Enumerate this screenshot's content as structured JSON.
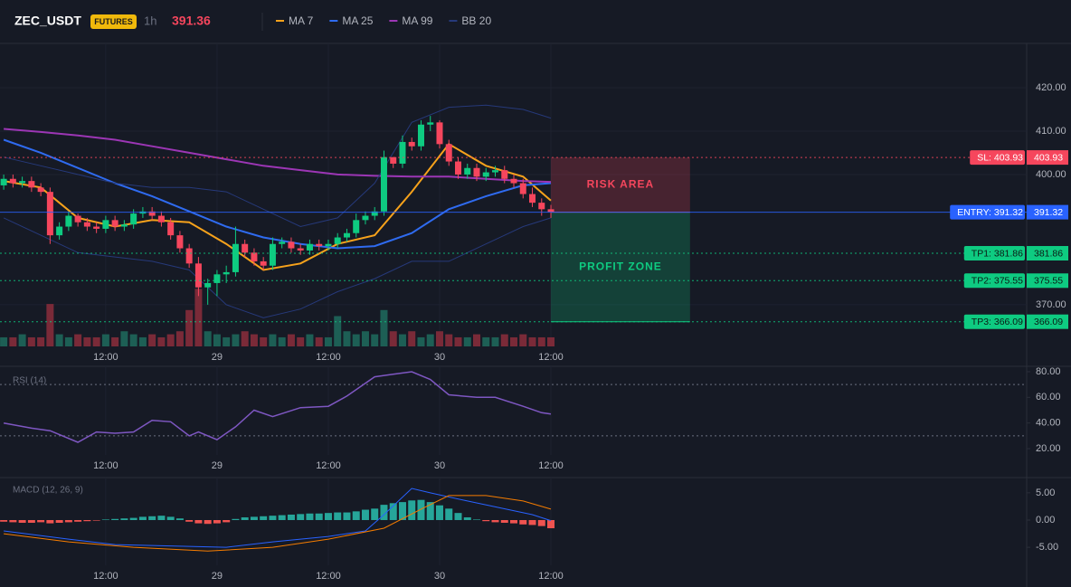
{
  "header": {
    "symbol": "ZEC_USDT",
    "badge": "FUTURES",
    "interval": "1h",
    "price": 391.36
  },
  "chart_data": [
    {
      "type": "candlestick",
      "xlim": [
        0.6,
        111.3
      ],
      "ylim": [
        360.4,
        430.2
      ],
      "y2lim": [
        0,
        100
      ],
      "grid": true,
      "xticks": [
        {
          "value": 12,
          "label": "12:00"
        },
        {
          "value": 24,
          "label": "29"
        },
        {
          "value": 36,
          "label": "12:00"
        },
        {
          "value": 48,
          "label": "30"
        },
        {
          "value": 60,
          "label": "12:00"
        }
      ],
      "yticks": [
        {
          "value": 420,
          "label": "420.00"
        },
        {
          "value": 410,
          "label": "410.00"
        },
        {
          "value": 400,
          "label": "400.00"
        },
        {
          "value": 370,
          "label": "370.00"
        }
      ],
      "colors": {
        "up": "#0ecb81",
        "down": "#f6465d",
        "volume_up": "#1d5f55",
        "volume_down": "#7a2a38"
      },
      "x": [
        1,
        2,
        3,
        4,
        5,
        6,
        7,
        8,
        9,
        10,
        11,
        12,
        13,
        14,
        15,
        16,
        17,
        18,
        19,
        20,
        21,
        22,
        23,
        24,
        25,
        26,
        27,
        28,
        29,
        30,
        31,
        32,
        33,
        34,
        35,
        36,
        37,
        38,
        39,
        40,
        41,
        42,
        43,
        44,
        45,
        46,
        47,
        48,
        49,
        50,
        51,
        52,
        53,
        54,
        55,
        56,
        57,
        58,
        59,
        60
      ],
      "open": [
        397.5,
        399,
        398,
        398.5,
        397,
        396,
        386,
        388,
        390.5,
        389,
        388,
        387.5,
        389.5,
        388,
        388.5,
        391,
        391.5,
        390.5,
        389,
        386,
        383,
        379.5,
        374,
        375,
        377,
        377.5,
        384,
        382,
        380,
        379,
        384,
        384.5,
        383,
        382.5,
        384,
        383.5,
        384,
        385.5,
        386.5,
        389.5,
        390.5,
        391.5,
        404,
        402.5,
        407.5,
        406.5,
        411.5,
        412,
        407,
        403,
        400,
        401.5,
        399.5,
        400.5,
        401,
        399,
        398,
        395.5,
        393.5,
        392
      ],
      "high": [
        400,
        400,
        399.5,
        399.5,
        398,
        397,
        389,
        391.5,
        391,
        390,
        389,
        390.5,
        390.5,
        389.5,
        392,
        392.5,
        392.5,
        391.5,
        390,
        387,
        384,
        381,
        376,
        378,
        379,
        388,
        385,
        383,
        381,
        385.5,
        385.5,
        385.5,
        384,
        385,
        385,
        385,
        386.5,
        387.5,
        391,
        391.5,
        392.5,
        405.5,
        404,
        409,
        408.5,
        412.5,
        413.5,
        412.5,
        408,
        404,
        402.5,
        402.5,
        401.5,
        402,
        402,
        400,
        399,
        397,
        394.5,
        393
      ],
      "low": [
        396.5,
        397,
        397,
        396,
        395,
        384,
        385,
        387,
        388,
        387,
        386.5,
        386.5,
        387,
        387,
        387.5,
        390,
        389.5,
        388,
        385,
        382,
        378.5,
        372,
        370,
        372,
        375,
        376.5,
        381,
        379,
        378,
        378,
        383,
        382,
        381.5,
        381.5,
        382.5,
        382.5,
        383,
        384.5,
        385.5,
        388.5,
        389.5,
        390.5,
        401.5,
        401.5,
        405.5,
        405.5,
        410,
        406,
        402,
        399,
        399,
        398.5,
        398.5,
        399.5,
        398,
        397,
        394.5,
        392.5,
        390.5,
        390
      ],
      "close": [
        399,
        398,
        398.5,
        397,
        396,
        386,
        388,
        390.5,
        389,
        388,
        387.5,
        389.5,
        388,
        388.5,
        391,
        391.5,
        390.5,
        389,
        386,
        383,
        379.5,
        374,
        375,
        377,
        377.5,
        384,
        382,
        380,
        379,
        384,
        384.5,
        383,
        382.5,
        384,
        383.5,
        384,
        385.5,
        386.5,
        389.5,
        390.5,
        391.5,
        404,
        402.5,
        407.5,
        406.5,
        411.5,
        412,
        407,
        403,
        400,
        401.5,
        399.5,
        400.5,
        401,
        399,
        398,
        395.5,
        393.5,
        392,
        391.36
      ],
      "volume": [
        3,
        3,
        4,
        3,
        3,
        14,
        4,
        3,
        4,
        3,
        3,
        4,
        3,
        5,
        4,
        3,
        4,
        3,
        4,
        5,
        12,
        19,
        5,
        4,
        3,
        4,
        5,
        4,
        3,
        4,
        3,
        4,
        3,
        4,
        3,
        3,
        10,
        5,
        4,
        5,
        4,
        12,
        5,
        4,
        5,
        3,
        4,
        5,
        4,
        3,
        3,
        4,
        3,
        3,
        4,
        3,
        4,
        3,
        3,
        3
      ],
      "series": [
        {
          "name": "MA 7",
          "color": "#f7a21b",
          "x": [
            1,
            5,
            9,
            13,
            17,
            21,
            25,
            29,
            33,
            37,
            41,
            45,
            49,
            53,
            57,
            60
          ],
          "values": [
            398.5,
            397,
            390,
            388,
            389.5,
            389,
            384,
            378,
            379.5,
            384,
            386,
            396,
            407,
            402,
            399.5,
            394
          ]
        },
        {
          "name": "MA 25",
          "color": "#2f6bf0",
          "x": [
            1,
            5,
            9,
            13,
            17,
            21,
            25,
            29,
            33,
            37,
            41,
            45,
            49,
            53,
            57,
            60
          ],
          "values": [
            408,
            405,
            401.5,
            398,
            395,
            391.5,
            388,
            385.5,
            384,
            383,
            383.5,
            386.5,
            392,
            395,
            397.5,
            398
          ]
        },
        {
          "name": "MA 99",
          "color": "#9c36b5",
          "x": [
            1,
            5,
            9,
            13,
            17,
            21,
            25,
            29,
            33,
            37,
            41,
            45,
            49,
            53,
            57,
            60
          ],
          "values": [
            410.5,
            409.8,
            409,
            408,
            406.5,
            405,
            403.5,
            402,
            401,
            400,
            399.7,
            399.5,
            399.5,
            399,
            398.5,
            398.3
          ]
        },
        {
          "name": "BB 20",
          "color": "#26397a",
          "x": [
            1,
            5,
            9,
            13,
            17,
            21,
            25,
            29,
            33,
            37,
            41,
            45,
            49,
            53,
            57,
            60
          ],
          "values": [
            404,
            402,
            400,
            398,
            397,
            397,
            396,
            392,
            388,
            390,
            398,
            412,
            415.5,
            416,
            415,
            413
          ],
          "lower": [
            390,
            386,
            382,
            381,
            380,
            378,
            370,
            367,
            369,
            373,
            376,
            380,
            380,
            384,
            388,
            390
          ]
        }
      ],
      "zones": [
        {
          "label": "RISK AREA",
          "from": 403.93,
          "to": 391.32,
          "x": [
            60,
            75
          ],
          "color": "#f6465d"
        },
        {
          "label": "PROFIT ZONE",
          "from": 391.32,
          "to": 366.09,
          "x": [
            60,
            75
          ],
          "color": "#0ecb81"
        }
      ],
      "levels": [
        {
          "label": "SL: 403.93",
          "value": 403.93,
          "color": "#f6465d",
          "text_color": "#ffffff",
          "style": "dotted"
        },
        {
          "label": "ENTRY: 391.32",
          "value": 391.32,
          "color": "#2962ff",
          "text_color": "#ffffff",
          "style": "solid"
        },
        {
          "label": "TP1: 381.86",
          "value": 381.86,
          "color": "#0ecb81",
          "text_color": "#0b1a14",
          "style": "dotted"
        },
        {
          "label": "TP2: 375.55",
          "value": 375.55,
          "color": "#0ecb81",
          "text_color": "#0b1a14",
          "style": "dotted"
        },
        {
          "label": "TP3: 366.09",
          "value": 366.09,
          "color": "#0ecb81",
          "text_color": "#0b1a14",
          "style": "dotted"
        }
      ]
    },
    {
      "type": "line",
      "title": "RSI (14)",
      "xlim": [
        0.6,
        111.3
      ],
      "ylim": [
        15.1,
        84.2
      ],
      "grid": false,
      "levels": [
        70,
        30
      ],
      "xticks": [
        {
          "value": 12,
          "label": "12:00"
        },
        {
          "value": 24,
          "label": "29"
        },
        {
          "value": 36,
          "label": "12:00"
        },
        {
          "value": 48,
          "label": "30"
        },
        {
          "value": 60,
          "label": "12:00"
        }
      ],
      "yticks": [
        {
          "value": 80,
          "label": "80.00"
        },
        {
          "value": 60,
          "label": "60.00"
        },
        {
          "value": 40,
          "label": "40.00"
        },
        {
          "value": 20,
          "label": "20.00"
        }
      ],
      "series": [
        {
          "color": "#7e57c2",
          "x": [
            1,
            4,
            6,
            9,
            11,
            13,
            15,
            17,
            19,
            21,
            22,
            24,
            26,
            28,
            30,
            33,
            36,
            38,
            41,
            43,
            45,
            47,
            49,
            52,
            54,
            57,
            59,
            60
          ],
          "values": [
            40,
            36,
            34,
            25,
            33,
            32,
            33,
            42,
            41,
            30,
            33,
            27,
            37,
            50,
            45,
            52,
            53,
            61,
            76,
            78,
            80,
            74,
            62,
            60,
            60,
            53,
            48,
            47
          ]
        }
      ]
    },
    {
      "type": "macd",
      "title": "MACD (12, 26, 9)",
      "xlim": [
        0.6,
        111.3
      ],
      "ylim": [
        -8.3,
        7.8
      ],
      "grid": false,
      "xticks": [
        {
          "value": 12,
          "label": "12:00"
        },
        {
          "value": 24,
          "label": "29"
        },
        {
          "value": 36,
          "label": "12:00"
        },
        {
          "value": 48,
          "label": "30"
        },
        {
          "value": 60,
          "label": "12:00"
        }
      ],
      "yticks": [
        {
          "value": 5,
          "label": "5.00"
        },
        {
          "value": 0,
          "label": "0.00"
        },
        {
          "value": -5,
          "label": "-5.00"
        }
      ],
      "colors": {
        "up": "#26a69a",
        "down": "#ef5350"
      },
      "x": [
        1,
        2,
        3,
        4,
        5,
        6,
        7,
        8,
        9,
        10,
        11,
        12,
        13,
        14,
        15,
        16,
        17,
        18,
        19,
        20,
        21,
        22,
        23,
        24,
        25,
        26,
        27,
        28,
        29,
        30,
        31,
        32,
        33,
        34,
        35,
        36,
        37,
        38,
        39,
        40,
        41,
        42,
        43,
        44,
        45,
        46,
        47,
        48,
        49,
        50,
        51,
        52,
        53,
        54,
        55,
        56,
        57,
        58,
        59,
        60
      ],
      "histogram": [
        -0.3,
        -0.4,
        -0.5,
        -0.5,
        -0.4,
        -0.6,
        -0.5,
        -0.4,
        -0.3,
        -0.2,
        -0.1,
        0.1,
        0.2,
        0.3,
        0.4,
        0.6,
        0.7,
        0.8,
        0.6,
        0.3,
        -0.3,
        -0.6,
        -0.7,
        -0.6,
        -0.4,
        0.2,
        0.5,
        0.6,
        0.7,
        0.8,
        0.9,
        1,
        1.1,
        1.2,
        1.2,
        1.3,
        1.4,
        1.4,
        1.6,
        1.9,
        2.1,
        2.8,
        3.1,
        3.3,
        3.6,
        3.7,
        3.3,
        2.7,
        2.1,
        1.3,
        0.5,
        0.1,
        -0.2,
        -0.4,
        -0.5,
        -0.6,
        -0.8,
        -0.9,
        -1.1,
        -1.5
      ],
      "series": [
        {
          "color": "#2962ff",
          "x": [
            1,
            8,
            13,
            25,
            30,
            36,
            40,
            42,
            45,
            47,
            51,
            58,
            60
          ],
          "values": [
            -2,
            -3.5,
            -4.5,
            -5,
            -4,
            -3,
            -2,
            1,
            5.8,
            5,
            3.5,
            1,
            -0.1
          ]
        },
        {
          "color": "#f57c00",
          "x": [
            1,
            8,
            15,
            23,
            30,
            36,
            42,
            46,
            49,
            53,
            57,
            60
          ],
          "values": [
            -2.5,
            -4,
            -5,
            -5.7,
            -5,
            -3.5,
            -1.5,
            2,
            4.5,
            4.5,
            3.5,
            2
          ]
        }
      ]
    }
  ]
}
